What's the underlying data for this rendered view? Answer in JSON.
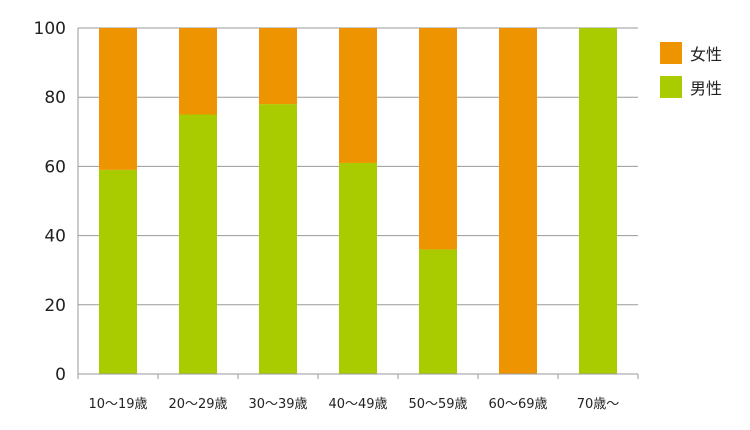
{
  "chart_data": {
    "type": "bar",
    "stacked": true,
    "categories": [
      "10～19歳",
      "20～29歳",
      "30～39歳",
      "40～49歳",
      "50～59歳",
      "60～69歳",
      "70歳～"
    ],
    "series": [
      {
        "name": "男性",
        "color": "#a8cc00",
        "values": [
          59,
          75,
          78,
          61,
          36,
          0,
          100
        ]
      },
      {
        "name": "女性",
        "color": "#ee9400",
        "values": [
          41,
          25,
          22,
          39,
          64,
          100,
          0
        ]
      }
    ],
    "ylim": [
      0,
      100
    ],
    "yticks": [
      "0",
      "20",
      "40",
      "60",
      "80",
      "100"
    ],
    "grid": true,
    "legend_position": "right"
  },
  "legend": [
    {
      "label": "女性",
      "color": "#ee9400"
    },
    {
      "label": "男性",
      "color": "#a8cc00"
    }
  ]
}
